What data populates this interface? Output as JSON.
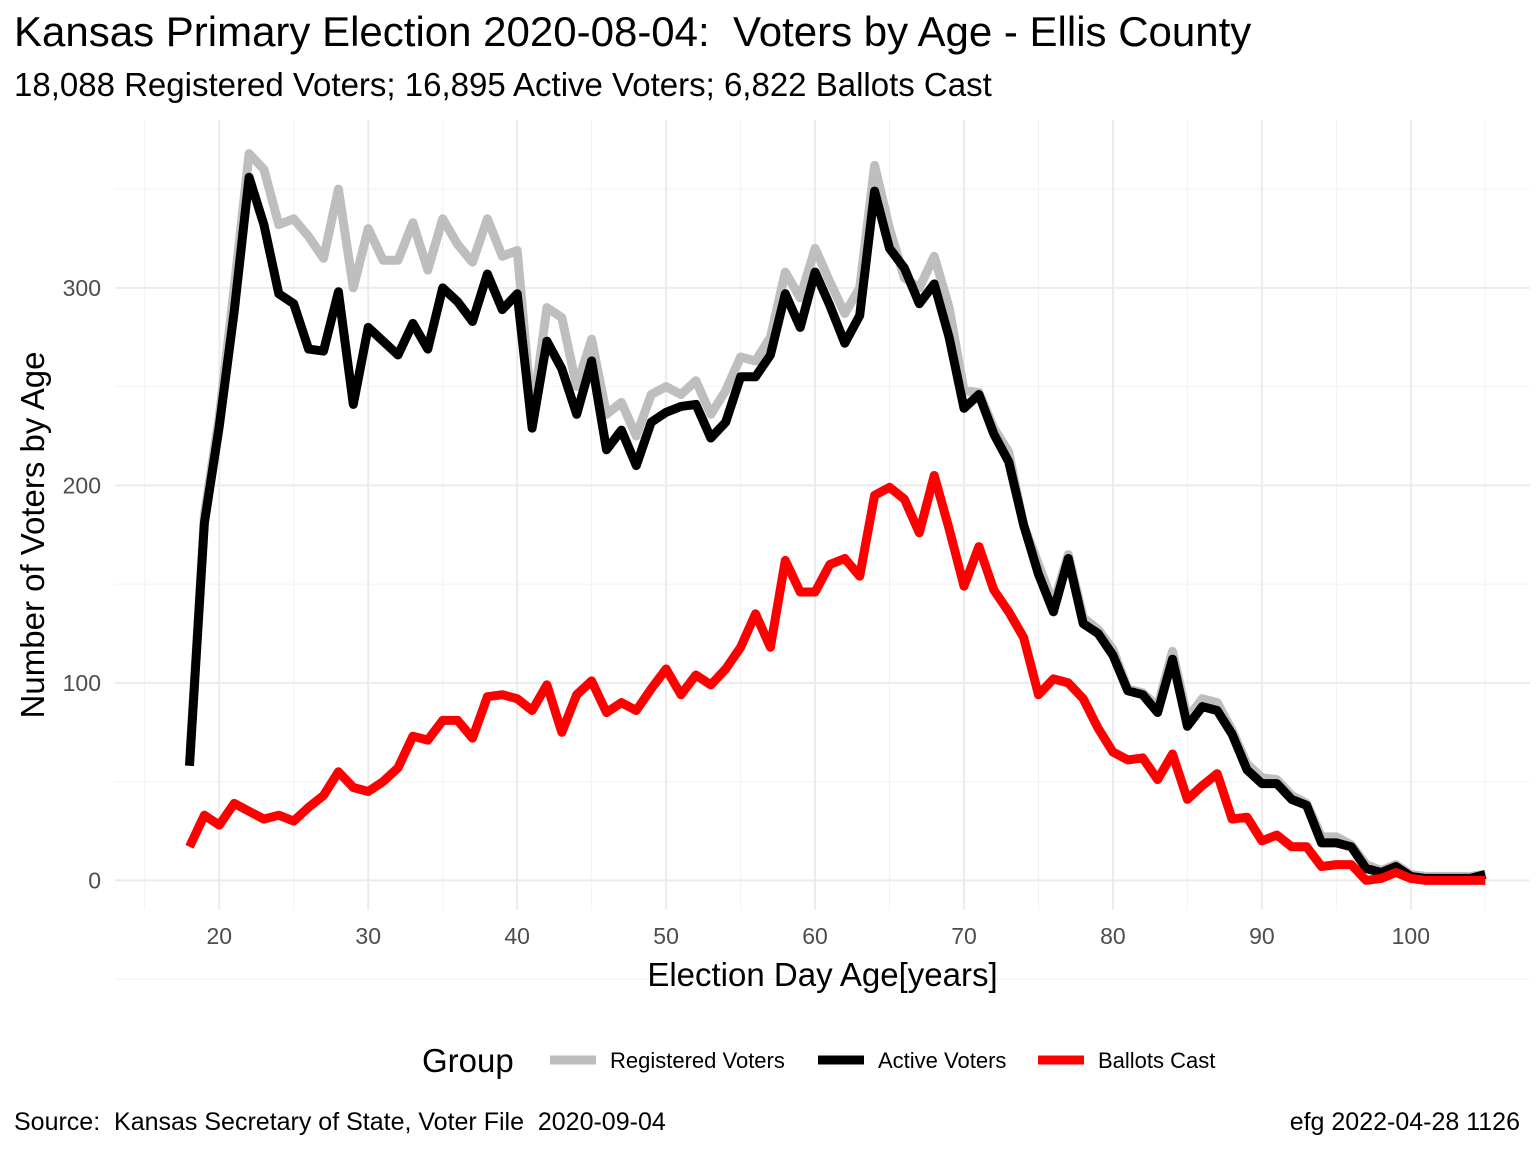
{
  "title": "Kansas Primary Election 2020-08-04:  Voters by Age - Ellis County",
  "subtitle": "18,088 Registered Voters; 16,895 Active Voters; 6,822 Ballots Cast",
  "caption_left": "Source:  Kansas Secretary of State, Voter File  2020-09-04",
  "caption_right": "efg 2022-04-28 1126",
  "chart_data": {
    "type": "line",
    "xlabel": "Election Day Age[years]",
    "ylabel": "Number of Voters by Age",
    "xlim": [
      13,
      108
    ],
    "ylim": [
      -15,
      385
    ],
    "x_ticks": [
      20,
      30,
      40,
      50,
      60,
      70,
      80,
      90,
      100
    ],
    "y_ticks": [
      0,
      100,
      200,
      300
    ],
    "grid": true,
    "legend": {
      "title": "Group",
      "position": "bottom"
    },
    "x": [
      18,
      19,
      20,
      21,
      22,
      23,
      24,
      25,
      26,
      27,
      28,
      29,
      30,
      31,
      32,
      33,
      34,
      35,
      36,
      37,
      38,
      39,
      40,
      41,
      42,
      43,
      44,
      45,
      46,
      47,
      48,
      49,
      50,
      51,
      52,
      53,
      54,
      55,
      56,
      57,
      58,
      59,
      60,
      61,
      62,
      63,
      64,
      65,
      66,
      67,
      68,
      69,
      70,
      71,
      72,
      73,
      74,
      75,
      76,
      77,
      78,
      79,
      80,
      81,
      82,
      83,
      84,
      85,
      86,
      87,
      88,
      89,
      90,
      91,
      92,
      93,
      94,
      95,
      96,
      97,
      98,
      99,
      100,
      101,
      102,
      103,
      104,
      105
    ],
    "series": [
      {
        "name": "Registered Voters",
        "color": "#bebebe",
        "values": [
          60,
          185,
          235,
          300,
          368,
          360,
          332,
          335,
          326,
          315,
          350,
          300,
          330,
          314,
          314,
          333,
          309,
          335,
          322,
          313,
          335,
          316,
          319,
          235,
          290,
          285,
          250,
          274,
          236,
          242,
          225,
          246,
          250,
          246,
          253,
          236,
          248,
          265,
          263,
          275,
          308,
          295,
          320,
          303,
          287,
          300,
          362,
          330,
          305,
          300,
          316,
          290,
          248,
          247,
          229,
          217,
          180,
          160,
          140,
          165,
          133,
          127,
          117,
          97,
          95,
          88,
          116,
          82,
          92,
          90,
          76,
          59,
          52,
          51,
          43,
          39,
          22,
          22,
          18,
          8,
          5,
          8,
          3,
          2,
          2,
          2,
          2,
          3
        ]
      },
      {
        "name": "Active Voters",
        "color": "#000000",
        "values": [
          58,
          181,
          230,
          288,
          356,
          332,
          297,
          292,
          269,
          268,
          298,
          241,
          280,
          273,
          266,
          282,
          269,
          300,
          293,
          283,
          307,
          289,
          297,
          229,
          273,
          259,
          236,
          263,
          218,
          228,
          210,
          232,
          237,
          240,
          241,
          224,
          232,
          255,
          255,
          266,
          297,
          280,
          308,
          291,
          272,
          286,
          349,
          320,
          310,
          292,
          302,
          275,
          239,
          246,
          226,
          212,
          180,
          155,
          136,
          163,
          130,
          125,
          114,
          96,
          94,
          85,
          112,
          78,
          88,
          86,
          74,
          56,
          49,
          49,
          41,
          38,
          19,
          19,
          17,
          6,
          4,
          7,
          2,
          1,
          1,
          1,
          1,
          3
        ]
      },
      {
        "name": "Ballots Cast",
        "color": "#ff0000",
        "values": [
          17,
          33,
          28,
          39,
          35,
          31,
          33,
          30,
          37,
          43,
          55,
          47,
          45,
          50,
          57,
          73,
          71,
          81,
          81,
          72,
          93,
          94,
          92,
          86,
          99,
          75,
          94,
          101,
          85,
          90,
          86,
          97,
          107,
          94,
          104,
          99,
          107,
          118,
          135,
          118,
          162,
          146,
          146,
          160,
          163,
          154,
          195,
          199,
          193,
          176,
          205,
          178,
          149,
          169,
          147,
          136,
          123,
          94,
          102,
          100,
          92,
          77,
          65,
          61,
          62,
          51,
          64,
          41,
          48,
          54,
          31,
          32,
          20,
          23,
          17,
          17,
          7,
          8,
          8,
          0,
          1,
          4,
          1,
          0,
          0,
          0,
          0,
          0
        ]
      }
    ]
  }
}
